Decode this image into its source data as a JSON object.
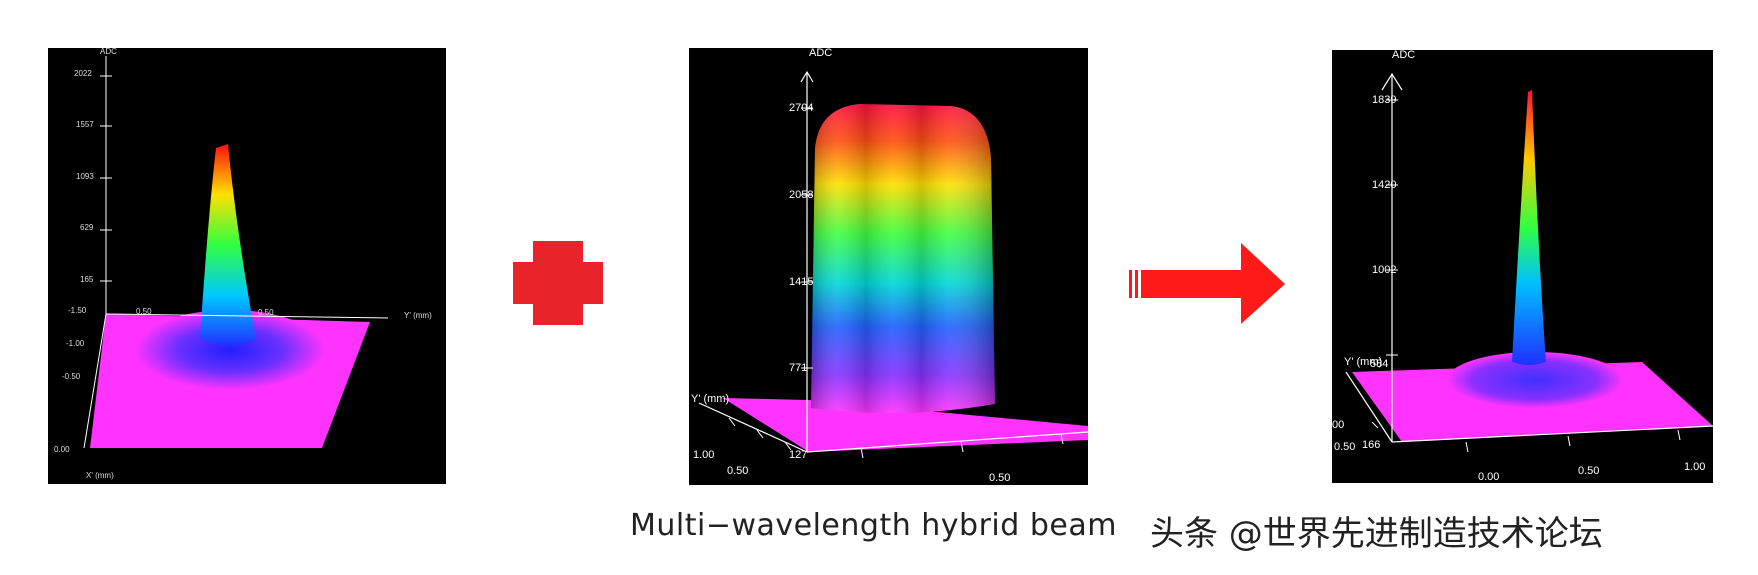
{
  "panels": [
    {
      "axis_title": "ADC",
      "z_ticks": [
        "2022",
        "1557",
        "1093",
        "629",
        "165"
      ],
      "y_ticks": [
        "-1.50",
        "-1.00",
        "-0.50",
        "0.00"
      ],
      "x_label": "Y' (mm)",
      "x_tick": "0.50",
      "x2_tick": "0.50",
      "bottom_label": "X' (mm)"
    },
    {
      "axis_title": "ADC",
      "z_ticks": [
        "2704",
        "2058",
        "1415",
        "771",
        "127"
      ],
      "y_label": "Y' (mm)",
      "y_ticks": [
        "1.00",
        "0.50"
      ],
      "x_tick": "0.50"
    },
    {
      "axis_title": "ADC",
      "z_ticks": [
        "1839",
        "1420",
        "1002",
        "584",
        "166"
      ],
      "y_label": "Y' (mm)",
      "y_ticks": [
        "00",
        "0.50"
      ],
      "x_ticks": [
        "0.00",
        "0.50",
        "1.00"
      ]
    }
  ],
  "caption": "Multi−wavelength hybrid beam",
  "watermark": "头条 @世界先进制造技术论坛",
  "colors": {
    "operator_red": "#e8242a",
    "arrow_red": "#ff1a1a",
    "plane_magenta": "#ff33ff"
  }
}
